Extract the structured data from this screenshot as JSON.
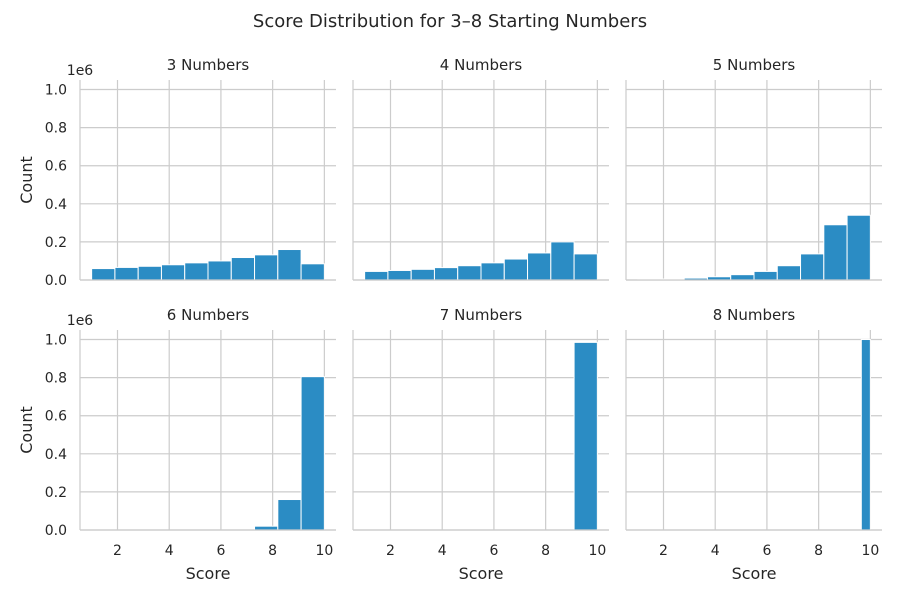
{
  "title": "Score Distribution for 3–8 Starting Numbers",
  "colors": {
    "bar": "#2b8cc4",
    "bar_edge": "#ffffff",
    "grid": "#cccccc",
    "spine": "#cccccc"
  },
  "chart_data": {
    "type": "bar",
    "layout": "facet-grid",
    "title": "Score Distribution for 3–8 Starting Numbers",
    "xlabel": "Score",
    "ylabel": "Count",
    "y_offset_label": "1e6",
    "xlim": [
      0.55,
      10.45
    ],
    "ylim": [
      0,
      1.05
    ],
    "xticks": [
      2,
      4,
      6,
      8,
      10
    ],
    "yticks": [
      0.0,
      0.2,
      0.4,
      0.6,
      0.8,
      1.0
    ],
    "grid": true,
    "panels": [
      {
        "title": "3 Numbers",
        "bins": [
          {
            "x0": 1.0,
            "x1": 1.9,
            "value": 0.06
          },
          {
            "x0": 1.9,
            "x1": 2.8,
            "value": 0.066
          },
          {
            "x0": 2.8,
            "x1": 3.7,
            "value": 0.072
          },
          {
            "x0": 3.7,
            "x1": 4.6,
            "value": 0.08
          },
          {
            "x0": 4.6,
            "x1": 5.5,
            "value": 0.09
          },
          {
            "x0": 5.5,
            "x1": 6.4,
            "value": 0.1
          },
          {
            "x0": 6.4,
            "x1": 7.3,
            "value": 0.118
          },
          {
            "x0": 7.3,
            "x1": 8.2,
            "value": 0.132
          },
          {
            "x0": 8.2,
            "x1": 9.1,
            "value": 0.16
          },
          {
            "x0": 9.1,
            "x1": 10.0,
            "value": 0.085
          }
        ]
      },
      {
        "title": "4 Numbers",
        "bins": [
          {
            "x0": 1.0,
            "x1": 1.9,
            "value": 0.045
          },
          {
            "x0": 1.9,
            "x1": 2.8,
            "value": 0.05
          },
          {
            "x0": 2.8,
            "x1": 3.7,
            "value": 0.056
          },
          {
            "x0": 3.7,
            "x1": 4.6,
            "value": 0.065
          },
          {
            "x0": 4.6,
            "x1": 5.5,
            "value": 0.075
          },
          {
            "x0": 5.5,
            "x1": 6.4,
            "value": 0.09
          },
          {
            "x0": 6.4,
            "x1": 7.3,
            "value": 0.11
          },
          {
            "x0": 7.3,
            "x1": 8.2,
            "value": 0.142
          },
          {
            "x0": 8.2,
            "x1": 9.1,
            "value": 0.2
          },
          {
            "x0": 9.1,
            "x1": 10.0,
            "value": 0.137
          }
        ]
      },
      {
        "title": "5 Numbers",
        "bins": [
          {
            "x0": 1.0,
            "x1": 1.9,
            "value": 0.002
          },
          {
            "x0": 1.9,
            "x1": 2.8,
            "value": 0.005
          },
          {
            "x0": 2.8,
            "x1": 3.7,
            "value": 0.01
          },
          {
            "x0": 3.7,
            "x1": 4.6,
            "value": 0.017
          },
          {
            "x0": 4.6,
            "x1": 5.5,
            "value": 0.028
          },
          {
            "x0": 5.5,
            "x1": 6.4,
            "value": 0.045
          },
          {
            "x0": 6.4,
            "x1": 7.3,
            "value": 0.075
          },
          {
            "x0": 7.3,
            "x1": 8.2,
            "value": 0.137
          },
          {
            "x0": 8.2,
            "x1": 9.1,
            "value": 0.29
          },
          {
            "x0": 9.1,
            "x1": 10.0,
            "value": 0.34
          }
        ]
      },
      {
        "title": "6 Numbers",
        "bins": [
          {
            "x0": 7.3,
            "x1": 8.2,
            "value": 0.02
          },
          {
            "x0": 8.2,
            "x1": 9.1,
            "value": 0.16
          },
          {
            "x0": 9.1,
            "x1": 10.0,
            "value": 0.805
          }
        ]
      },
      {
        "title": "7 Numbers",
        "bins": [
          {
            "x0": 9.1,
            "x1": 10.0,
            "value": 0.985
          }
        ]
      },
      {
        "title": "8 Numbers",
        "bins": [
          {
            "x0": 9.65,
            "x1": 10.0,
            "value": 1.0
          }
        ]
      }
    ]
  }
}
